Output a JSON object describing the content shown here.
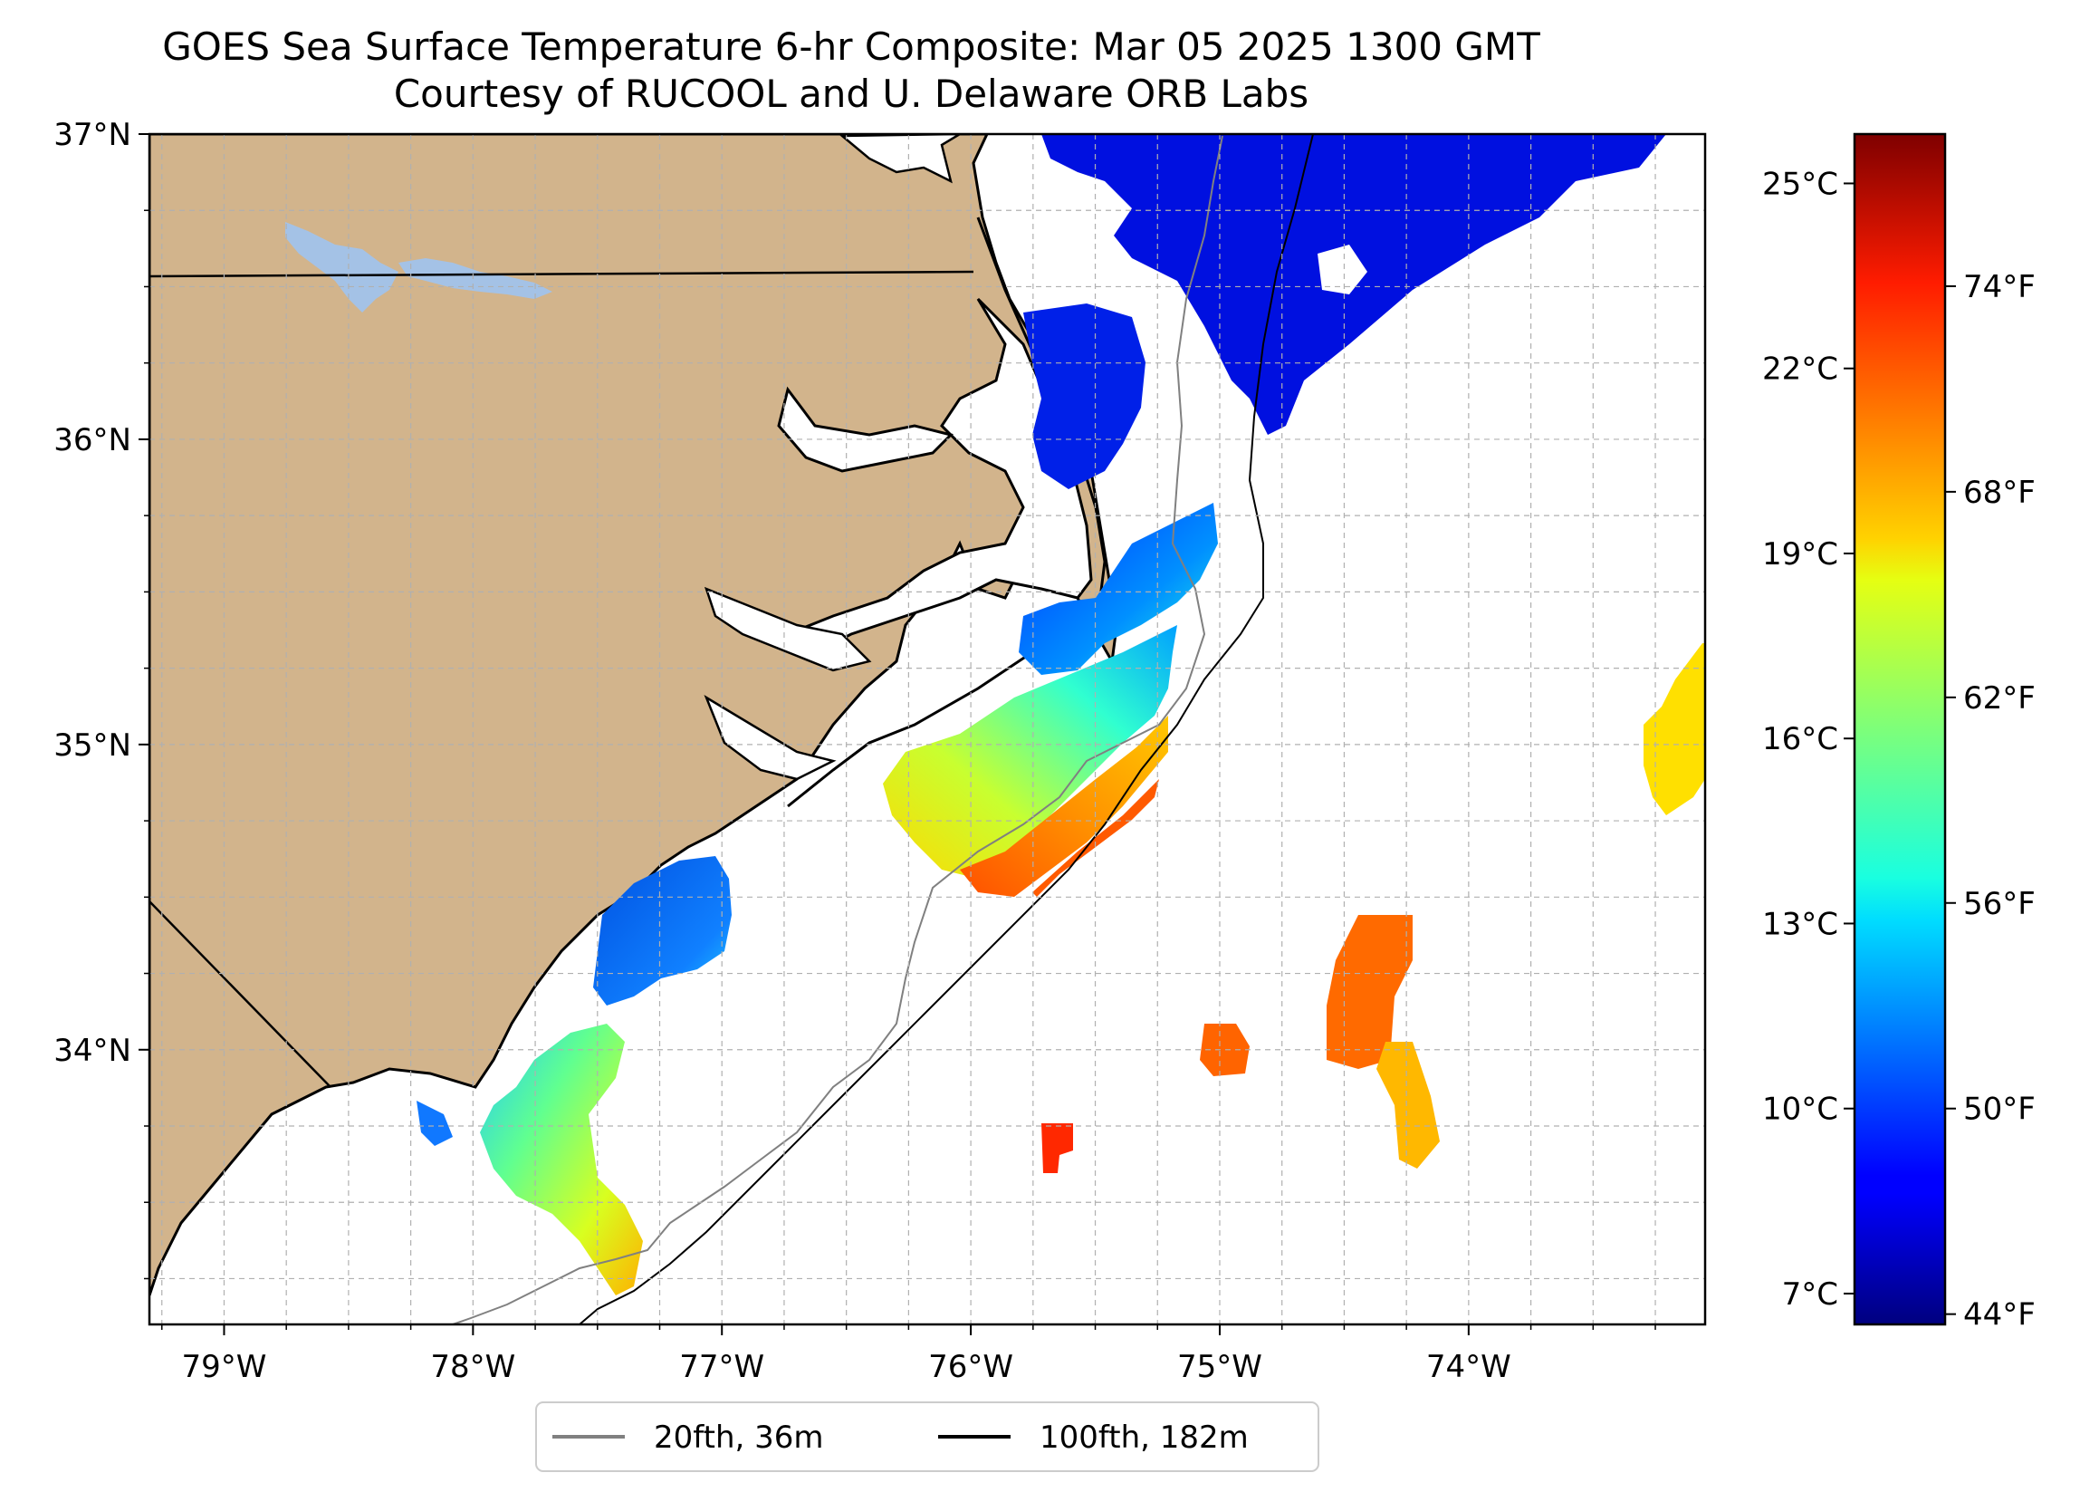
{
  "title": {
    "line1": "GOES Sea Surface Temperature 6-hr Composite: Mar 05 2025 1300 GMT",
    "line2": "Courtesy of RUCOOL and U. Delaware ORB Labs"
  },
  "map": {
    "lon_range": [
      -79.3,
      -73.05
    ],
    "lat_range": [
      33.1,
      37.0
    ],
    "lon_ticks": [
      "79°W",
      "78°W",
      "77°W",
      "76°W",
      "75°W",
      "74°W"
    ],
    "lon_tick_values": [
      -79,
      -78,
      -77,
      -76,
      -75,
      -74
    ],
    "lat_ticks": [
      "34°N",
      "35°N",
      "36°N",
      "37°N"
    ],
    "lat_tick_values": [
      34,
      35,
      36,
      37
    ],
    "gridlines": true,
    "land_color": "#d2b48c",
    "water_color": "#ffffff",
    "lake_color": "#a4c2e6"
  },
  "colorbar": {
    "colormap": "jet",
    "celsius_ticks": [
      "25°C",
      "22°C",
      "19°C",
      "16°C",
      "13°C",
      "10°C",
      "7°C"
    ],
    "celsius_values": [
      25,
      22,
      19,
      16,
      13,
      10,
      7
    ],
    "fahrenheit_ticks": [
      "74°F",
      "68°F",
      "62°F",
      "56°F",
      "50°F",
      "44°F"
    ],
    "fahrenheit_values": [
      74,
      68,
      62,
      56,
      50,
      44
    ],
    "range_c": [
      6.5,
      25.8
    ]
  },
  "legend": {
    "items": [
      {
        "label": "20fth, 36m",
        "color": "#808080"
      },
      {
        "label": "100fth, 182m",
        "color": "#000000"
      }
    ],
    "placement": "bottom-center"
  }
}
